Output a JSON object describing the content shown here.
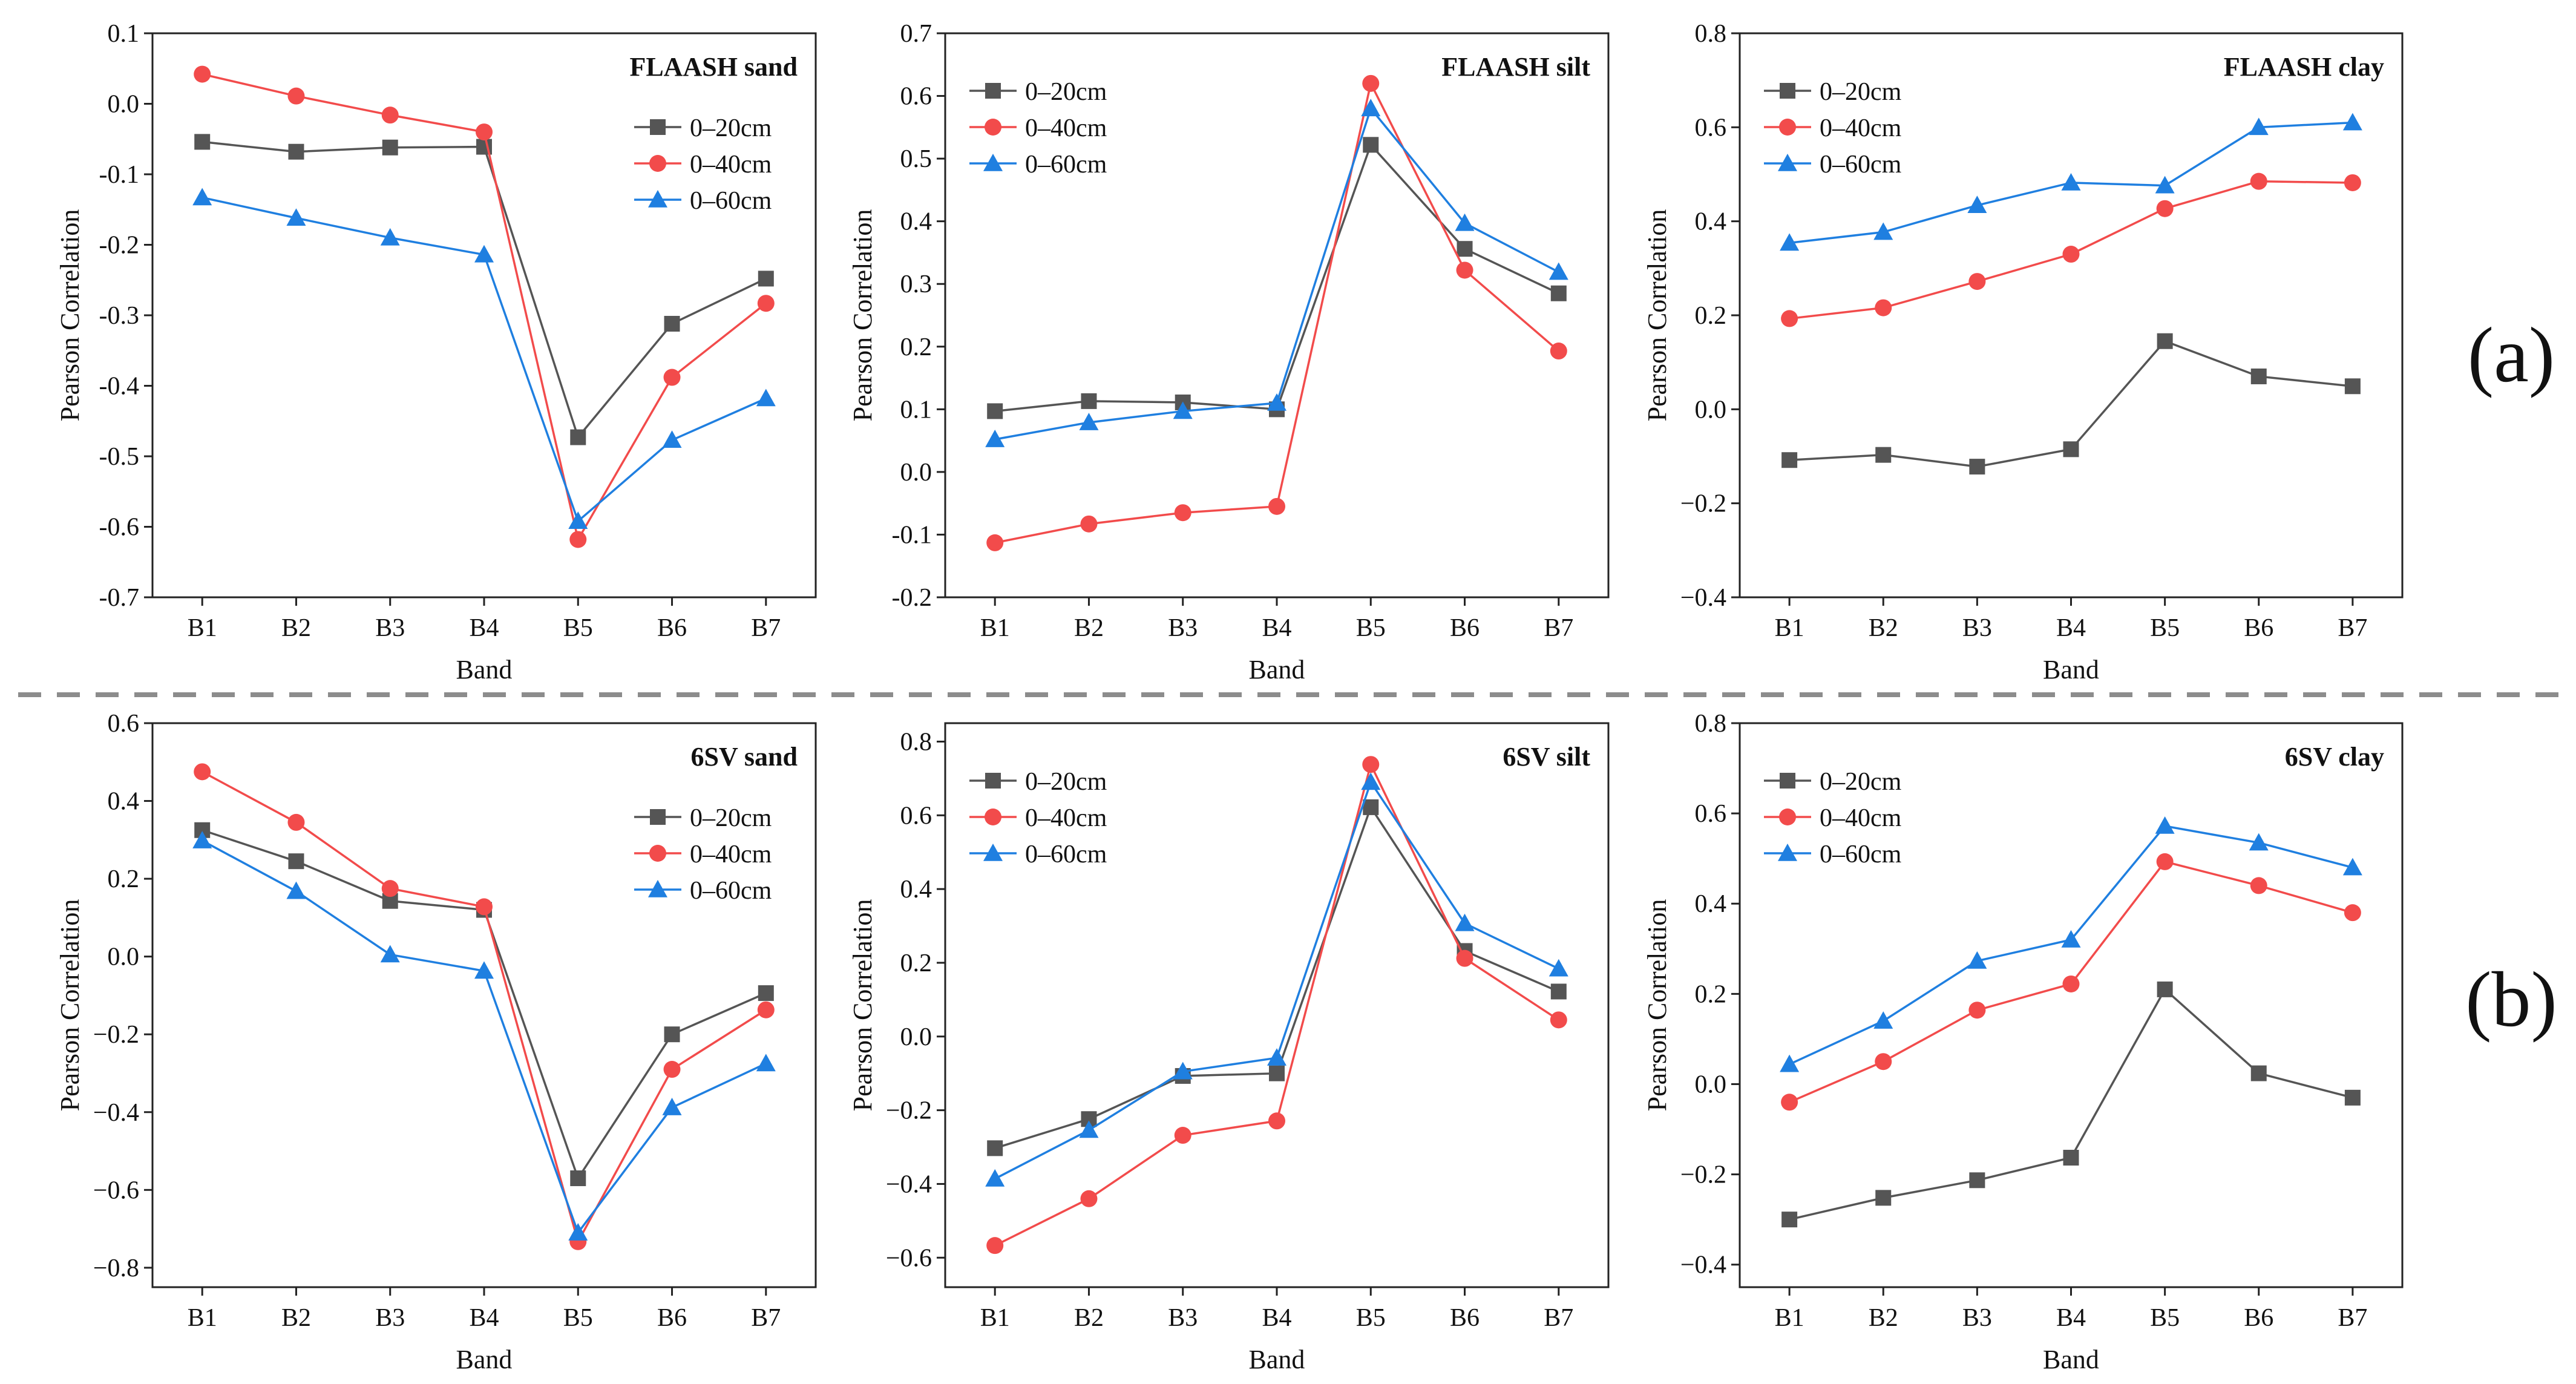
{
  "row_labels": [
    "(a)",
    "(b)"
  ],
  "series_styles": [
    {
      "name": "0–20cm",
      "color": "#555555",
      "marker": "square"
    },
    {
      "name": "0–40cm",
      "color": "#f24b4b",
      "marker": "circle"
    },
    {
      "name": "0–60cm",
      "color": "#1f7fe0",
      "marker": "triangle"
    }
  ],
  "chart_data": [
    {
      "type": "line",
      "title": "FLAASH sand",
      "xlabel": "Band",
      "ylabel": "Pearson Correlation",
      "categories": [
        "B1",
        "B2",
        "B3",
        "B4",
        "B5",
        "B6",
        "B7"
      ],
      "ylim": [
        -0.7,
        0.1
      ],
      "yticks": [
        0.1,
        0.0,
        -0.1,
        -0.2,
        -0.3,
        -0.4,
        -0.5,
        -0.6,
        -0.7
      ],
      "ytick_labels": [
        "0.1",
        "0.0",
        "-0.1",
        "-0.2",
        "-0.3",
        "-0.4",
        "-0.5",
        "-0.6",
        "-0.7"
      ],
      "legend": "upper-right",
      "series": [
        {
          "name": "0–20cm",
          "values": [
            -0.054,
            -0.068,
            -0.062,
            -0.061,
            -0.473,
            -0.312,
            -0.248
          ]
        },
        {
          "name": "0–40cm",
          "values": [
            0.042,
            0.011,
            -0.016,
            -0.04,
            -0.618,
            -0.388,
            -0.283
          ]
        },
        {
          "name": "0–60cm",
          "values": [
            -0.133,
            -0.162,
            -0.19,
            -0.214,
            -0.592,
            -0.477,
            -0.418
          ]
        }
      ]
    },
    {
      "type": "line",
      "title": "FLAASH silt",
      "xlabel": "Band",
      "ylabel": "Pearson Correlation",
      "categories": [
        "B1",
        "B2",
        "B3",
        "B4",
        "B5",
        "B6",
        "B7"
      ],
      "ylim": [
        -0.2,
        0.7
      ],
      "yticks": [
        0.7,
        0.6,
        0.5,
        0.4,
        0.3,
        0.2,
        0.1,
        0.0,
        -0.1,
        -0.2
      ],
      "ytick_labels": [
        "0.7",
        "0.6",
        "0.5",
        "0.4",
        "0.3",
        "0.2",
        "0.1",
        "0.0",
        "-0.1",
        "-0.2"
      ],
      "legend": "upper-left",
      "series": [
        {
          "name": "0–20cm",
          "values": [
            0.097,
            0.113,
            0.111,
            0.1,
            0.522,
            0.356,
            0.285
          ]
        },
        {
          "name": "0–40cm",
          "values": [
            -0.113,
            -0.083,
            -0.065,
            -0.055,
            0.62,
            0.322,
            0.193
          ]
        },
        {
          "name": "0–60cm",
          "values": [
            0.052,
            0.079,
            0.097,
            0.11,
            0.58,
            0.397,
            0.319
          ]
        }
      ]
    },
    {
      "type": "line",
      "title": "FLAASH clay",
      "xlabel": "Band",
      "ylabel": "Pearson Correlation",
      "categories": [
        "B1",
        "B2",
        "B3",
        "B4",
        "B5",
        "B6",
        "B7"
      ],
      "ylim": [
        -0.4,
        0.8
      ],
      "yticks": [
        0.8,
        0.6,
        0.4,
        0.2,
        0.0,
        -0.2,
        -0.4
      ],
      "ytick_labels": [
        "0.8",
        "0.6",
        "0.4",
        "0.2",
        "0.0",
        "−0.2",
        "−0.4"
      ],
      "legend": "upper-left",
      "series": [
        {
          "name": "0–20cm",
          "values": [
            -0.108,
            -0.097,
            -0.122,
            -0.085,
            0.145,
            0.07,
            0.049
          ]
        },
        {
          "name": "0–40cm",
          "values": [
            0.193,
            0.216,
            0.272,
            0.33,
            0.427,
            0.485,
            0.482
          ]
        },
        {
          "name": "0–60cm",
          "values": [
            0.354,
            0.377,
            0.434,
            0.482,
            0.476,
            0.6,
            0.61
          ]
        }
      ]
    },
    {
      "type": "line",
      "title": "6SV sand",
      "xlabel": "Band",
      "ylabel": "Pearson Correlation",
      "categories": [
        "B1",
        "B2",
        "B3",
        "B4",
        "B5",
        "B6",
        "B7"
      ],
      "ylim": [
        -0.85,
        0.6
      ],
      "yticks": [
        0.6,
        0.4,
        0.2,
        0.0,
        -0.2,
        -0.4,
        -0.6,
        -0.8
      ],
      "ytick_labels": [
        "0.6",
        "0.4",
        "0.2",
        "0.0",
        "−0.2",
        "−0.4",
        "−0.6",
        "−0.8"
      ],
      "legend": "upper-right",
      "series": [
        {
          "name": "0–20cm",
          "values": [
            0.325,
            0.245,
            0.143,
            0.12,
            -0.57,
            -0.2,
            -0.094
          ]
        },
        {
          "name": "0–40cm",
          "values": [
            0.475,
            0.345,
            0.175,
            0.128,
            -0.733,
            -0.29,
            -0.137
          ]
        },
        {
          "name": "0–60cm",
          "values": [
            0.298,
            0.168,
            0.005,
            -0.037,
            -0.71,
            -0.388,
            -0.275
          ]
        }
      ]
    },
    {
      "type": "line",
      "title": "6SV silt",
      "xlabel": "Band",
      "ylabel": "Pearson Correlation",
      "categories": [
        "B1",
        "B2",
        "B3",
        "B4",
        "B5",
        "B6",
        "B7"
      ],
      "ylim": [
        -0.68,
        0.85
      ],
      "yticks": [
        0.8,
        0.6,
        0.4,
        0.2,
        0.0,
        -0.2,
        -0.4,
        -0.6
      ],
      "ytick_labels": [
        "0.8",
        "0.6",
        "0.4",
        "0.2",
        "0.0",
        "−0.2",
        "−0.4",
        "−0.6"
      ],
      "legend": "upper-left",
      "series": [
        {
          "name": "0–20cm",
          "values": [
            -0.303,
            -0.224,
            -0.107,
            -0.1,
            0.622,
            0.232,
            0.122
          ]
        },
        {
          "name": "0–40cm",
          "values": [
            -0.567,
            -0.44,
            -0.268,
            -0.229,
            0.738,
            0.212,
            0.045
          ]
        },
        {
          "name": "0–60cm",
          "values": [
            -0.386,
            -0.254,
            -0.095,
            -0.058,
            0.69,
            0.307,
            0.184
          ]
        }
      ]
    },
    {
      "type": "line",
      "title": "6SV clay",
      "xlabel": "Band",
      "ylabel": "Pearson Correlation",
      "categories": [
        "B1",
        "B2",
        "B3",
        "B4",
        "B5",
        "B6",
        "B7"
      ],
      "ylim": [
        -0.45,
        0.8
      ],
      "yticks": [
        0.8,
        0.6,
        0.4,
        0.2,
        0.0,
        -0.2,
        -0.4
      ],
      "ytick_labels": [
        "0.8",
        "0.6",
        "0.4",
        "0.2",
        "0.0",
        "−0.2",
        "−0.4"
      ],
      "legend": "upper-left",
      "series": [
        {
          "name": "0–20cm",
          "values": [
            -0.3,
            -0.252,
            -0.213,
            -0.163,
            0.21,
            0.024,
            -0.03
          ]
        },
        {
          "name": "0–40cm",
          "values": [
            -0.04,
            0.05,
            0.164,
            0.222,
            0.493,
            0.44,
            0.38
          ]
        },
        {
          "name": "0–60cm",
          "values": [
            0.044,
            0.14,
            0.273,
            0.32,
            0.572,
            0.535,
            0.48
          ]
        }
      ]
    }
  ]
}
